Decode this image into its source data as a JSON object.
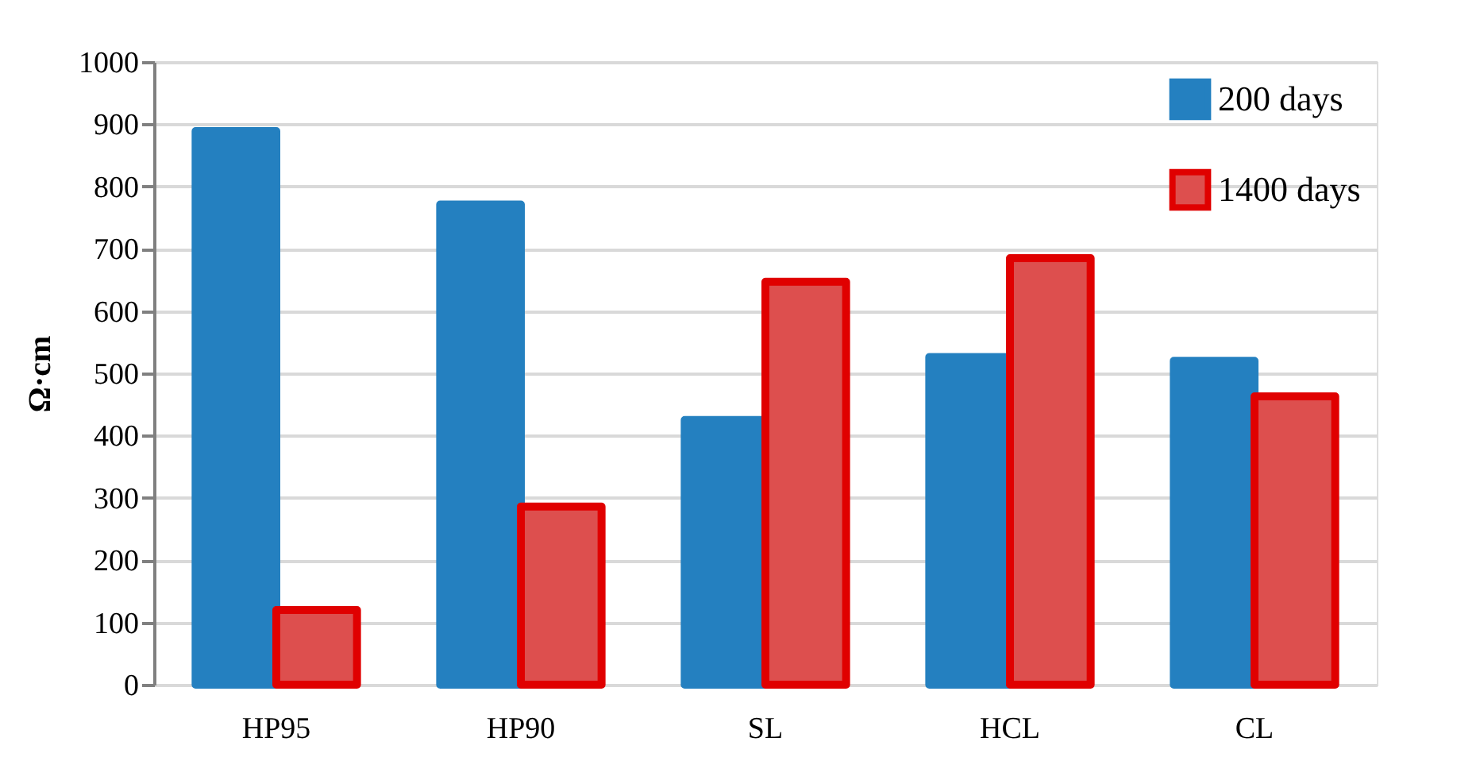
{
  "chart_data": {
    "type": "bar",
    "ylabel": "Ω·cm",
    "categories": [
      "HP95",
      "HP90",
      "SL",
      "HCL",
      "CL"
    ],
    "series": [
      {
        "name": "200 days",
        "color": "#2480c0",
        "values": [
          889,
          771,
          425,
          526,
          520
        ]
      },
      {
        "name": "1400 days",
        "color": "#dd4f4e",
        "values": [
          120,
          286,
          647,
          685,
          463
        ]
      }
    ],
    "ylim": [
      0,
      1000
    ],
    "yticks": [
      0,
      100,
      200,
      300,
      400,
      500,
      600,
      700,
      800,
      900,
      1000
    ],
    "grid": "y",
    "legend": "top right"
  }
}
